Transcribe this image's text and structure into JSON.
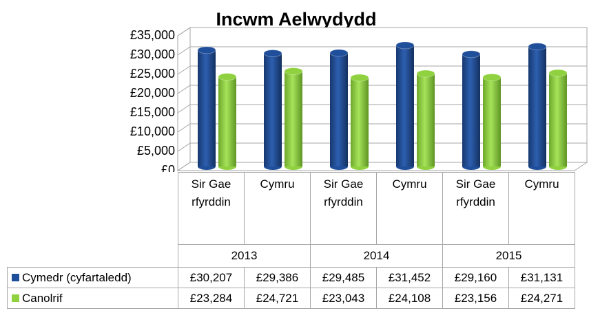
{
  "chart_data": {
    "type": "bar3d",
    "title": "Incwm Aelwydydd",
    "categories": [
      "Sir Gaerfyrddin",
      "Cymru",
      "Sir Gaerfyrddin",
      "Cymru",
      "Sir Gaerfyrddin",
      "Cymru"
    ],
    "groups": [
      "2013",
      "2014",
      "2015"
    ],
    "series": [
      {
        "name": "Cymedr (cyfartaledd)",
        "color": "#1f4e9a",
        "values": [
          30207,
          29386,
          29485,
          31452,
          29160,
          31131
        ],
        "value_labels": [
          "£30,207",
          "£29,386",
          "£29,485",
          "£31,452",
          "£29,160",
          "£31,131"
        ]
      },
      {
        "name": "Canolrif",
        "color": "#8fd13f",
        "values": [
          23284,
          24721,
          23043,
          24108,
          23156,
          24271
        ],
        "value_labels": [
          "£23,284",
          "£24,721",
          "£23,043",
          "£24,108",
          "£23,156",
          "£24,271"
        ]
      }
    ],
    "ylim": [
      0,
      35000
    ],
    "yticks": [
      {
        "value": 0,
        "label": "£0"
      },
      {
        "value": 5000,
        "label": "£5,000"
      },
      {
        "value": 10000,
        "label": "£10,000"
      },
      {
        "value": 15000,
        "label": "£15,000"
      },
      {
        "value": 20000,
        "label": "£20,000"
      },
      {
        "value": 25000,
        "label": "£25,000"
      },
      {
        "value": 30000,
        "label": "£30,000"
      },
      {
        "value": 35000,
        "label": "£35,000"
      }
    ],
    "grid": true
  }
}
